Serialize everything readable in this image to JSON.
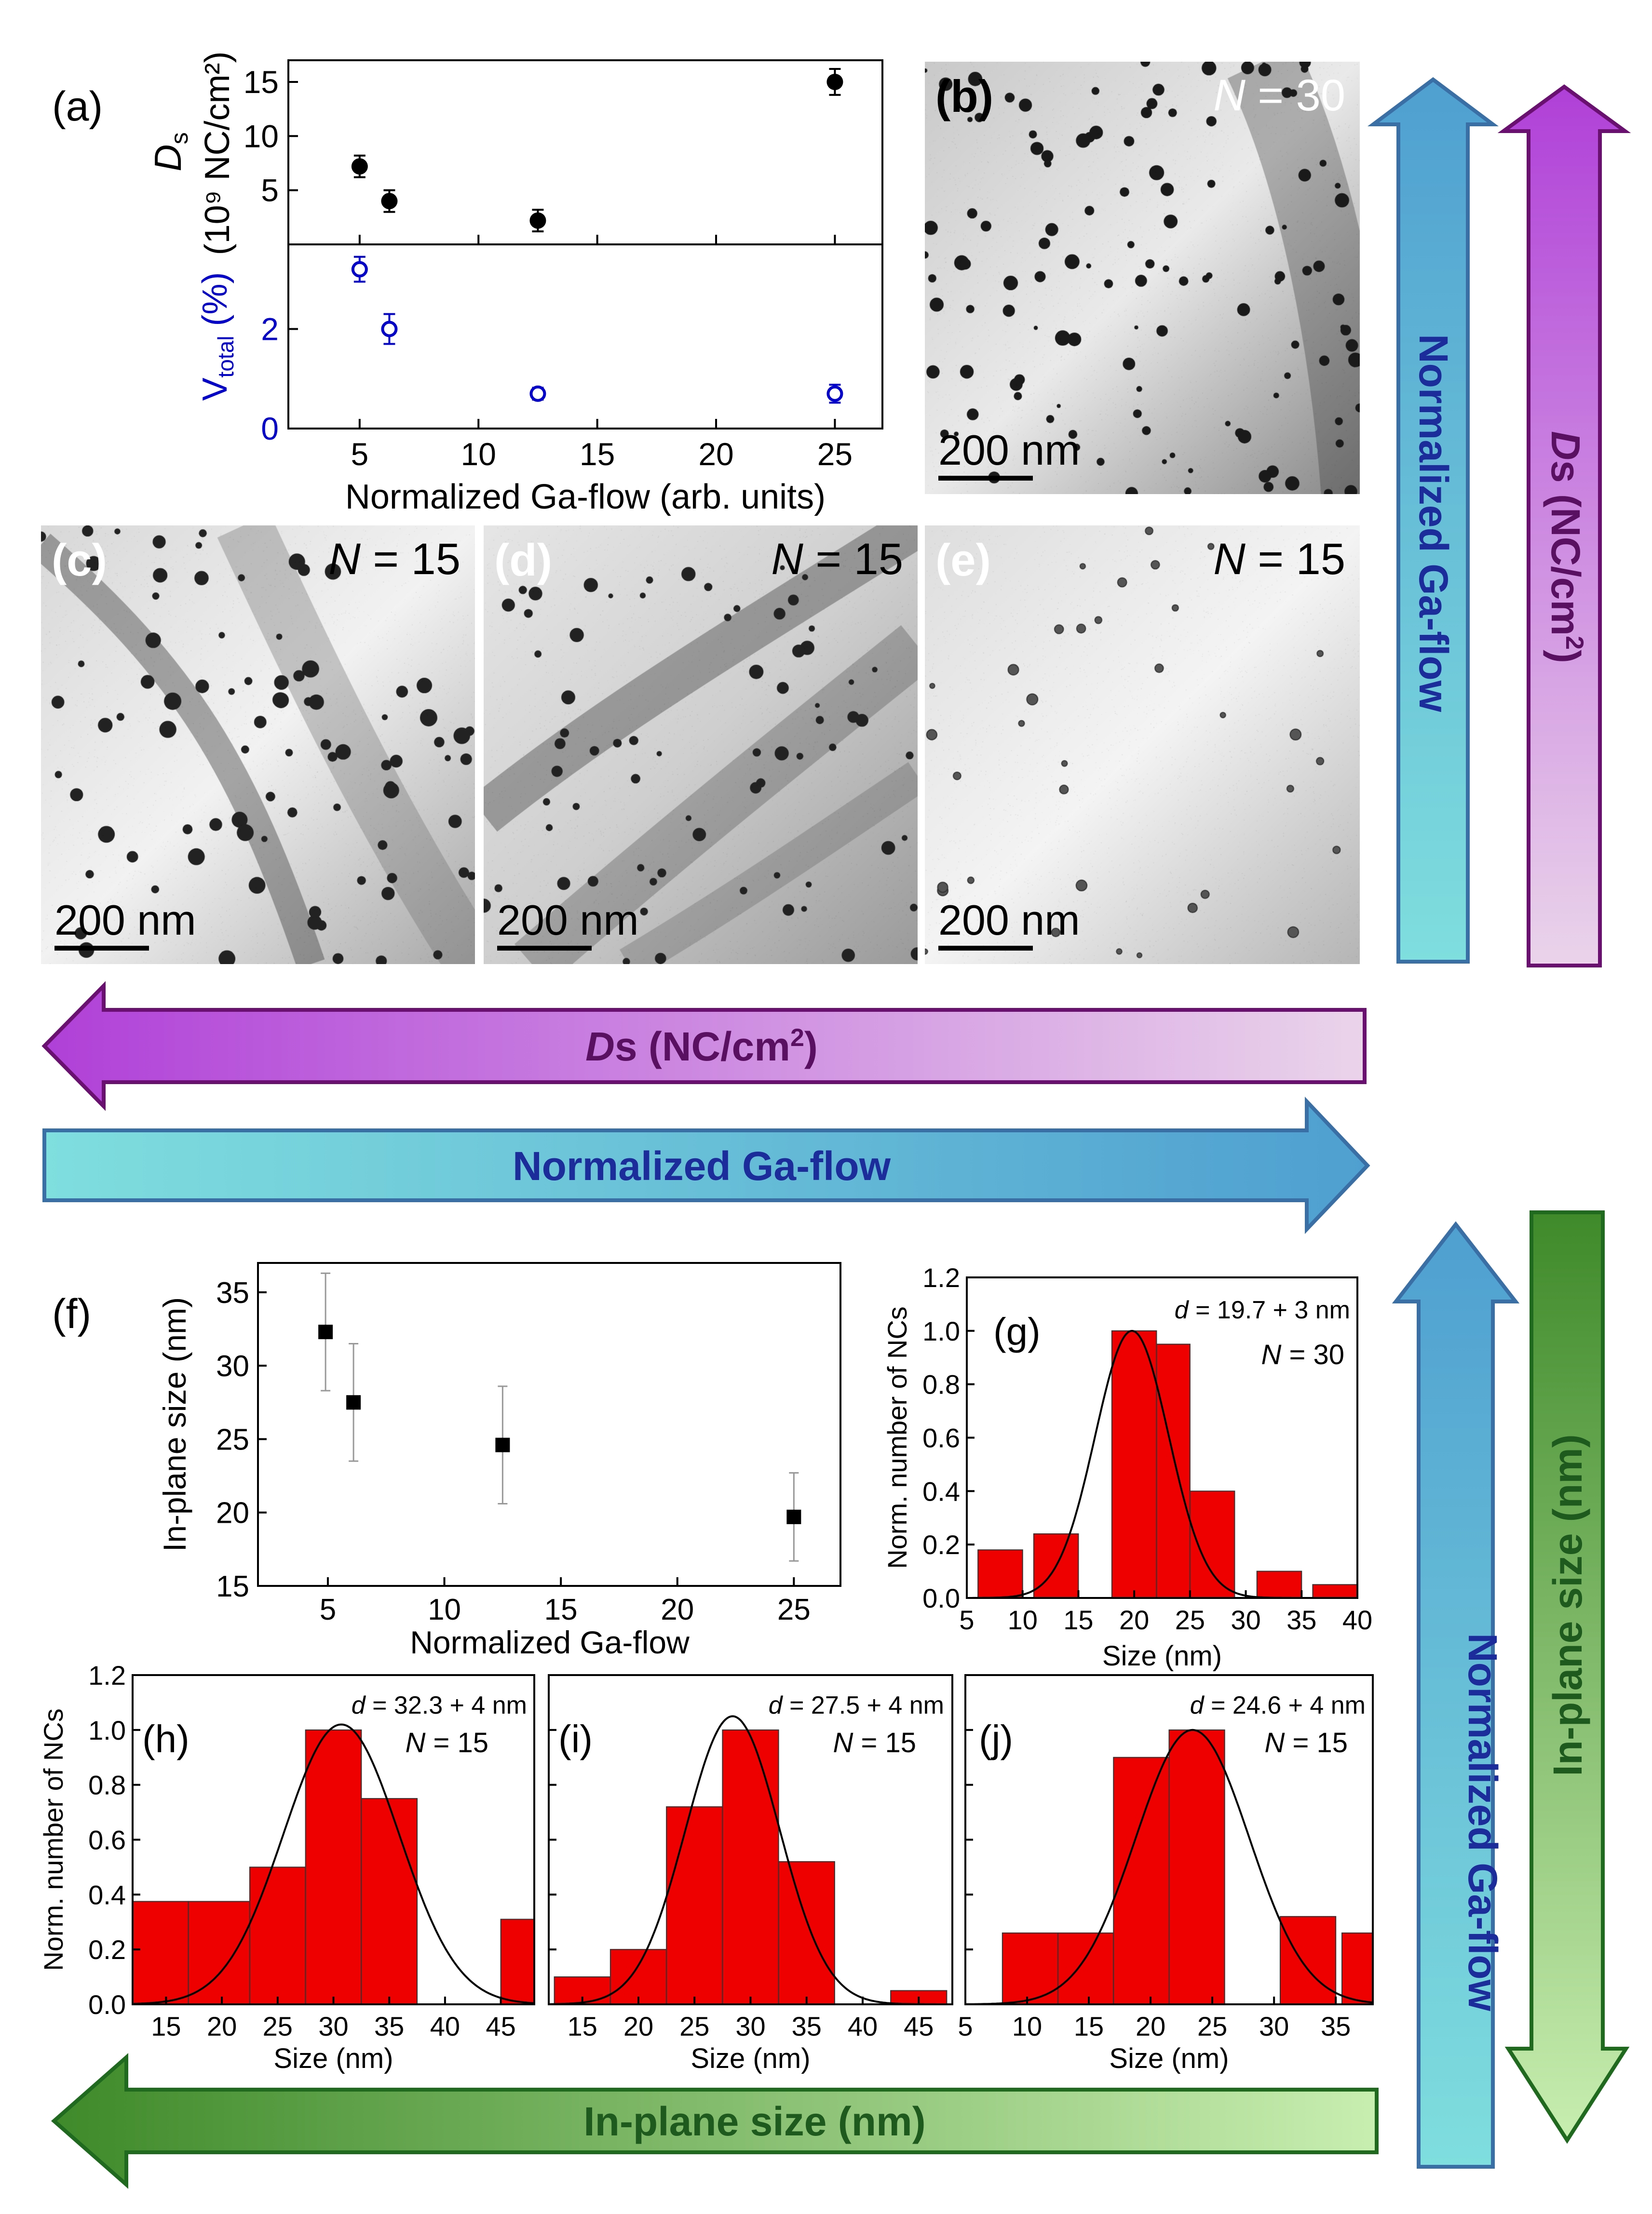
{
  "chart_data": [
    {
      "id": "a",
      "type": "scatter",
      "panel_label": "(a)",
      "xlabel": "Normalized Ga-flow (arb. units)",
      "xlim": [
        2,
        27
      ],
      "xticks": [
        "5",
        "10",
        "15",
        "20",
        "25"
      ],
      "top": {
        "ylabel_main": "D",
        "ylabel_sub": "s",
        "ylabel_unit": "(10⁹ NC/cm²)",
        "ylim": [
          0,
          17
        ],
        "yticks": [
          "5",
          "10",
          "15"
        ],
        "series": [
          {
            "name": "Ds",
            "marker": "filled-circle",
            "color": "#000000",
            "points": [
              {
                "x": 5,
                "y": 7.2,
                "err": 1.0
              },
              {
                "x": 6.25,
                "y": 4.0,
                "err": 1.0
              },
              {
                "x": 12.5,
                "y": 2.2,
                "err": 1.0
              },
              {
                "x": 25,
                "y": 15.0,
                "err": 1.2
              }
            ]
          }
        ]
      },
      "bottom": {
        "ylabel_main": "V",
        "ylabel_sub": "total",
        "ylabel_unit": " (%)",
        "ylim": [
          0,
          3.7
        ],
        "yticks": [
          "0",
          "2"
        ],
        "series": [
          {
            "name": "Vtotal",
            "marker": "open-circle",
            "color": "#0000cc",
            "points": [
              {
                "x": 5,
                "y": 3.2,
                "err": 0.25
              },
              {
                "x": 6.25,
                "y": 2.0,
                "err": 0.3
              },
              {
                "x": 12.5,
                "y": 0.7,
                "err": 0.12
              },
              {
                "x": 25,
                "y": 0.7,
                "err": 0.18
              }
            ]
          }
        ]
      }
    },
    {
      "id": "f",
      "type": "scatter",
      "panel_label": "(f)",
      "xlabel": "Normalized Ga-flow",
      "ylabel": "In-plane size (nm)",
      "xlim": [
        2,
        27
      ],
      "ylim": [
        15,
        37
      ],
      "xticks": [
        "5",
        "10",
        "15",
        "20",
        "25"
      ],
      "yticks": [
        "15",
        "20",
        "25",
        "30",
        "35"
      ],
      "series": [
        {
          "name": "In-plane size",
          "marker": "filled-square",
          "color": "#000000",
          "points": [
            {
              "x": 4.9,
              "y": 32.3,
              "err": 4
            },
            {
              "x": 6.1,
              "y": 27.5,
              "err": 4
            },
            {
              "x": 12.5,
              "y": 24.6,
              "err": 4
            },
            {
              "x": 25,
              "y": 19.7,
              "err": 3
            }
          ]
        }
      ]
    },
    {
      "id": "g",
      "type": "bar",
      "panel_label": "(g)",
      "xlabel": "Size (nm)",
      "ylabel": "Norm. number of NCs",
      "xlim": [
        5,
        40
      ],
      "ylim": [
        0,
        1.2
      ],
      "xticks": [
        "5",
        "10",
        "15",
        "20",
        "25",
        "30",
        "35",
        "40"
      ],
      "yticks": [
        "0.0",
        "0.2",
        "0.4",
        "0.6",
        "0.8",
        "1.0",
        "1.2"
      ],
      "annotation_prefix": "d",
      "annotation": " = 19.7 + 3 nm",
      "n_label": "N",
      "n_value": " = 30",
      "bins": [
        {
          "x0": 6,
          "x1": 10,
          "value": 0.18
        },
        {
          "x0": 11,
          "x1": 15,
          "value": 0.24
        },
        {
          "x0": 18,
          "x1": 22,
          "value": 1.0
        },
        {
          "x0": 22,
          "x1": 25,
          "value": 0.95
        },
        {
          "x0": 25,
          "x1": 29,
          "value": 0.4
        },
        {
          "x0": 31,
          "x1": 35,
          "value": 0.1
        },
        {
          "x0": 36,
          "x1": 40,
          "value": 0.05
        }
      ],
      "fit": {
        "mean": 19.8,
        "sigma": 3.3,
        "amplitude": 1.0
      }
    },
    {
      "id": "h",
      "type": "bar",
      "panel_label": "(h)",
      "xlabel": "Size (nm)",
      "ylabel": "Norm. number of NCs",
      "xlim": [
        12,
        48
      ],
      "ylim": [
        0,
        1.2
      ],
      "xticks": [
        "15",
        "20",
        "25",
        "30",
        "35",
        "40",
        "45"
      ],
      "yticks": [
        "0.0",
        "0.2",
        "0.4",
        "0.6",
        "0.8",
        "1.0",
        "1.2"
      ],
      "annotation_prefix": "d",
      "annotation": " = 32.3 + 4 nm",
      "n_label": "N",
      "n_value": " = 15",
      "bins": [
        {
          "x0": 12,
          "x1": 17,
          "value": 0.375
        },
        {
          "x0": 17,
          "x1": 22.5,
          "value": 0.375
        },
        {
          "x0": 22.5,
          "x1": 27.5,
          "value": 0.5
        },
        {
          "x0": 27.5,
          "x1": 32.5,
          "value": 1.0
        },
        {
          "x0": 32.5,
          "x1": 37.5,
          "value": 0.75
        },
        {
          "x0": 45,
          "x1": 48,
          "value": 0.31
        }
      ],
      "fit": {
        "mean": 30.7,
        "sigma": 5.2,
        "amplitude": 1.02
      }
    },
    {
      "id": "i",
      "type": "bar",
      "panel_label": "(i)",
      "xlabel": "Size (nm)",
      "ylabel": "",
      "xlim": [
        12,
        48
      ],
      "ylim": [
        0,
        1.2
      ],
      "xticks": [
        "15",
        "20",
        "25",
        "30",
        "35",
        "40",
        "45"
      ],
      "yticks": [],
      "annotation_prefix": "d",
      "annotation": " = 27.5 + 4 nm",
      "n_label": "N",
      "n_value": " = 15",
      "bins": [
        {
          "x0": 12.5,
          "x1": 17.5,
          "value": 0.1
        },
        {
          "x0": 17.5,
          "x1": 22.5,
          "value": 0.2
        },
        {
          "x0": 22.5,
          "x1": 27.5,
          "value": 0.72
        },
        {
          "x0": 27.5,
          "x1": 32.5,
          "value": 1.0
        },
        {
          "x0": 32.5,
          "x1": 37.5,
          "value": 0.52
        },
        {
          "x0": 42.5,
          "x1": 47.5,
          "value": 0.05
        }
      ],
      "fit": {
        "mean": 28.4,
        "sigma": 4.2,
        "amplitude": 1.05
      }
    },
    {
      "id": "j",
      "type": "bar",
      "panel_label": "(j)",
      "xlabel": "Size (nm)",
      "ylabel": "",
      "xlim": [
        5,
        38
      ],
      "ylim": [
        0,
        1.2
      ],
      "xticks": [
        "5",
        "10",
        "15",
        "20",
        "25",
        "30",
        "35"
      ],
      "yticks": [],
      "annotation_prefix": "d",
      "annotation": " = 24.6 + 4 nm",
      "n_label": "N",
      "n_value": " = 15",
      "bins": [
        {
          "x0": 8,
          "x1": 12.5,
          "value": 0.26
        },
        {
          "x0": 12.5,
          "x1": 17,
          "value": 0.26
        },
        {
          "x0": 17,
          "x1": 21.5,
          "value": 0.9
        },
        {
          "x0": 21.5,
          "x1": 26,
          "value": 1.0
        },
        {
          "x0": 30.5,
          "x1": 35,
          "value": 0.32
        },
        {
          "x0": 35.5,
          "x1": 38,
          "value": 0.26
        }
      ],
      "fit": {
        "mean": 23.4,
        "sigma": 4.6,
        "amplitude": 1.0
      }
    }
  ],
  "tem_images": [
    {
      "id": "b",
      "panel_label": "(b)",
      "n_prefix": "N",
      "n_value": " = 30",
      "scale_label": "200 nm",
      "n_color": "#ffffff"
    },
    {
      "id": "c",
      "panel_label": "(c)",
      "n_prefix": "N",
      "n_value": " = 15",
      "scale_label": "200 nm",
      "n_color": "#000000"
    },
    {
      "id": "d",
      "panel_label": "(d)",
      "n_prefix": "N",
      "n_value": " = 15",
      "scale_label": "200 nm",
      "n_color": "#000000"
    },
    {
      "id": "e",
      "panel_label": "(e)",
      "n_prefix": "N",
      "n_value": " = 15",
      "scale_label": "200 nm",
      "n_color": "#000000"
    }
  ],
  "arrows": {
    "ga_flow_label": "Normalized Ga-flow",
    "ds_label_main": "D",
    "ds_label_rest": "s (NC/cm",
    "ds_label_sup": "2",
    "ds_label_end": ")",
    "size_label": "In-plane size (nm)",
    "colors": {
      "cyan_light": "#7fdede",
      "cyan_dark": "#4f9fd0",
      "cyan_stroke": "#3a6fa6",
      "purple_dark": "#b040d8",
      "purple_light": "#ead4ea",
      "purple_stroke": "#6a1070",
      "green_dark": "#3f8a2a",
      "green_light": "#c8eeb0",
      "green_stroke": "#1f6a1f",
      "ga_text": "#1c2c9a",
      "ds_text": "#5a1060",
      "size_text": "#1e5a1e"
    }
  },
  "colors": {
    "bar_fill": "#ee0000",
    "ds_marker": "#000000",
    "vtotal_marker": "#0000cc"
  }
}
